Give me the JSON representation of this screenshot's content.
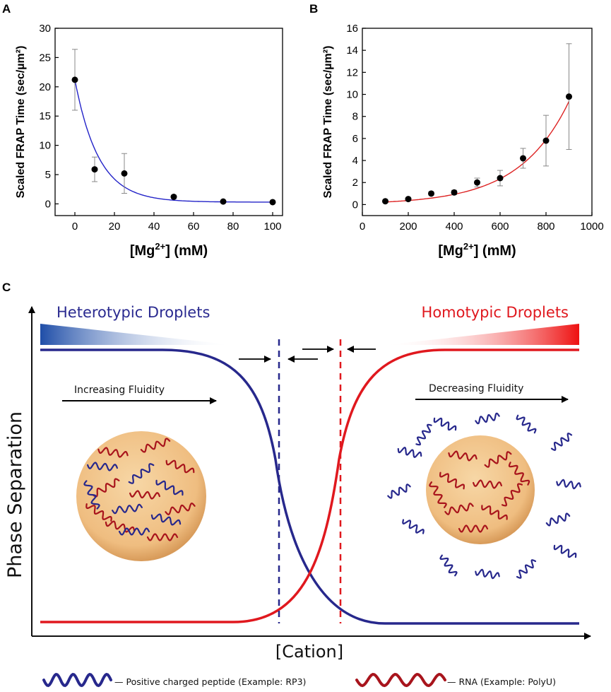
{
  "panels": {
    "a": "A",
    "b": "B",
    "c": "C"
  },
  "chart_data": [
    {
      "type": "scatter",
      "title": "",
      "xlabel": "[Mg2+] (mM)",
      "ylabel": "Scaled FRAP Time (sec/µm²)",
      "xlim": [
        -10,
        105
      ],
      "ylim": [
        -2,
        30
      ],
      "xticks": [
        0,
        20,
        40,
        60,
        80,
        100
      ],
      "yticks": [
        0,
        5,
        10,
        15,
        20,
        25,
        30
      ],
      "points": [
        {
          "x": 0,
          "y": 21.2,
          "err": 5.2
        },
        {
          "x": 10,
          "y": 5.9,
          "err": 2.1
        },
        {
          "x": 25,
          "y": 5.2,
          "err": 3.4
        },
        {
          "x": 50,
          "y": 1.2,
          "err": 0.3
        },
        {
          "x": 75,
          "y": 0.4,
          "err": 0.2
        },
        {
          "x": 100,
          "y": 0.3,
          "err": 0.1
        }
      ],
      "fit": {
        "type": "exponential-decay",
        "color": "#2323c8",
        "y0": 0.3,
        "A": 20.9,
        "t": 12
      }
    },
    {
      "type": "scatter",
      "title": "",
      "xlabel": "[Mg2+] (mM)",
      "ylabel": "Scaled FRAP Time (sec/µm²)",
      "xlim": [
        0,
        1000
      ],
      "ylim": [
        -1,
        16
      ],
      "xticks": [
        0,
        200,
        400,
        600,
        800,
        1000
      ],
      "yticks": [
        0,
        2,
        4,
        6,
        8,
        10,
        12,
        14,
        16
      ],
      "points": [
        {
          "x": 100,
          "y": 0.3,
          "err": 0.1
        },
        {
          "x": 200,
          "y": 0.5,
          "err": 0.1
        },
        {
          "x": 300,
          "y": 1.0,
          "err": 0.15
        },
        {
          "x": 400,
          "y": 1.1,
          "err": 0.2
        },
        {
          "x": 500,
          "y": 2.0,
          "err": 0.4
        },
        {
          "x": 600,
          "y": 2.4,
          "err": 0.7
        },
        {
          "x": 700,
          "y": 4.2,
          "err": 0.9
        },
        {
          "x": 800,
          "y": 5.8,
          "err": 2.3
        },
        {
          "x": 900,
          "y": 9.8,
          "err": 4.8
        }
      ],
      "fit": {
        "type": "exponential-growth",
        "color": "#dd2222",
        "y0": 0,
        "A": 0.1468,
        "k": 0.004617
      }
    }
  ],
  "axis_text": {
    "ylabel": "Scaled FRAP Time (sec/µm²)",
    "xlabel_pre": "[Mg",
    "xlabel_sup": "2+",
    "xlabel_post": "] (mM)"
  },
  "schematic": {
    "left_title": "Heterotypic Droplets",
    "right_title": "Homotypic Droplets",
    "left_arrow_label": "Increasing Fluidity",
    "right_arrow_label": "Decreasing Fluidity",
    "y_axis_label": "Phase Separation",
    "x_axis_label": "[Cation]",
    "colors": {
      "blue": "#27288c",
      "red": "#e0181e",
      "droplet": "#f2c48a"
    }
  },
  "legend": {
    "peptide": "— Positive charged peptide  (Example: RP3)",
    "rna": "— RNA  (Example: PolyU)"
  }
}
